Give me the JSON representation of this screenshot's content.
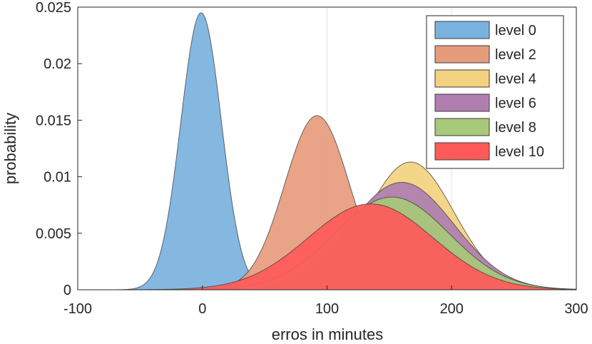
{
  "chart_data": {
    "type": "area",
    "xlabel": "erros in minutes",
    "ylabel": "probability",
    "xlim": [
      -100,
      300
    ],
    "ylim": [
      0,
      0.025
    ],
    "xticks": [
      -100,
      0,
      100,
      200,
      300
    ],
    "xtick_labels": [
      "-100",
      "0",
      "100",
      "200",
      "300"
    ],
    "yticks": [
      0,
      0.005,
      0.01,
      0.015,
      0.02,
      0.025
    ],
    "ytick_labels": [
      "0",
      "0.005",
      "0.01",
      "0.015",
      "0.02",
      "0.025"
    ],
    "grid": "vertical",
    "legend_position": "top-right",
    "series": [
      {
        "name": "level 0",
        "mean": -1,
        "sd": 16.3,
        "peak": 0.0245,
        "color": "#79b2de"
      },
      {
        "name": "level 2",
        "mean": 92,
        "sd": 26,
        "peak": 0.0154,
        "color": "#e79b7d"
      },
      {
        "name": "level 4",
        "mean": 167,
        "sd": 35,
        "peak": 0.0113,
        "color": "#f2d27f"
      },
      {
        "name": "level 6",
        "mean": 160,
        "sd": 42,
        "peak": 0.0095,
        "color": "#b07fb0"
      },
      {
        "name": "level 8",
        "mean": 152,
        "sd": 46,
        "peak": 0.0082,
        "color": "#a8c87a"
      },
      {
        "name": "level 10",
        "mean": 135,
        "sd": 50,
        "peak": 0.0076,
        "color": "#ff5a5a"
      }
    ]
  }
}
